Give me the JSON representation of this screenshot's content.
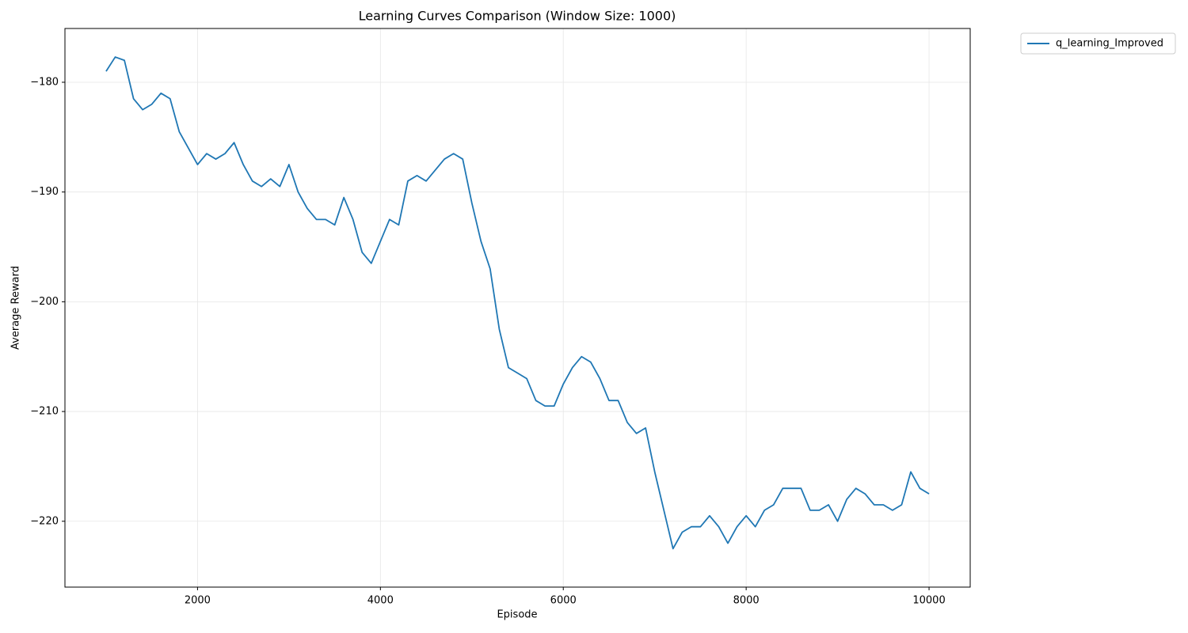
{
  "chart_data": {
    "type": "line",
    "title": "Learning Curves Comparison (Window Size: 1000)",
    "xlabel": "Episode",
    "ylabel": "Average Reward",
    "x": [
      1000,
      1100,
      1200,
      1300,
      1400,
      1500,
      1600,
      1700,
      1800,
      1900,
      2000,
      2100,
      2200,
      2300,
      2400,
      2500,
      2600,
      2700,
      2800,
      2900,
      3000,
      3100,
      3200,
      3300,
      3400,
      3500,
      3600,
      3700,
      3800,
      3900,
      4000,
      4100,
      4200,
      4300,
      4400,
      4500,
      4600,
      4700,
      4800,
      4900,
      5000,
      5100,
      5200,
      5300,
      5400,
      5500,
      5600,
      5700,
      5800,
      5900,
      6000,
      6100,
      6200,
      6300,
      6400,
      6500,
      6600,
      6700,
      6800,
      6900,
      7000,
      7100,
      7200,
      7300,
      7400,
      7500,
      7600,
      7700,
      7800,
      7900,
      8000,
      8100,
      8200,
      8300,
      8400,
      8500,
      8600,
      8700,
      8800,
      8900,
      9000,
      9100,
      9200,
      9300,
      9400,
      9500,
      9600,
      9700,
      9800,
      9900,
      10000
    ],
    "series": [
      {
        "name": "q_learning_Improved",
        "color": "#1f77b4",
        "values": [
          -179,
          -177.7,
          -178,
          -181.5,
          -182.5,
          -182,
          -181,
          -181.5,
          -184.5,
          -186,
          -187.5,
          -186.5,
          -187,
          -186.5,
          -185.5,
          -187.5,
          -189,
          -189.5,
          -188.8,
          -189.5,
          -187.5,
          -190,
          -191.5,
          -192.5,
          -192.5,
          -193,
          -190.5,
          -192.5,
          -195.5,
          -196.5,
          -194.5,
          -192.5,
          -193,
          -189,
          -188.5,
          -189,
          -188,
          -187,
          -186.5,
          -187,
          -191,
          -194.5,
          -197,
          -202.5,
          -206,
          -206.5,
          -207,
          -209,
          -209.5,
          -209.5,
          -207.5,
          -206,
          -205,
          -205.5,
          -207,
          -209,
          -209,
          -211,
          -212,
          -211.5,
          -215.5,
          -219,
          -222.5,
          -221,
          -220.5,
          -220.5,
          -219.5,
          -220.5,
          -222,
          -220.5,
          -219.5,
          -220.5,
          -219,
          -218.5,
          -217,
          -217,
          -217,
          -219,
          -219,
          -218.5,
          -220,
          -218,
          -217,
          -217.5,
          -218.5,
          -218.5,
          -219,
          -218.5,
          -215.5,
          -217,
          -217.5
        ]
      }
    ],
    "xlim": [
      550,
      10450
    ],
    "ylim": [
      -226.0,
      -175.1
    ],
    "xticks": [
      2000,
      4000,
      6000,
      8000,
      10000
    ],
    "yticks": [
      {
        "value": -220,
        "label": "−220"
      },
      {
        "value": -210,
        "label": "−210"
      },
      {
        "value": -200,
        "label": "−200"
      },
      {
        "value": -190,
        "label": "−190"
      },
      {
        "value": -180,
        "label": "−180"
      }
    ],
    "grid": true,
    "legend": "outside-upper-right"
  }
}
